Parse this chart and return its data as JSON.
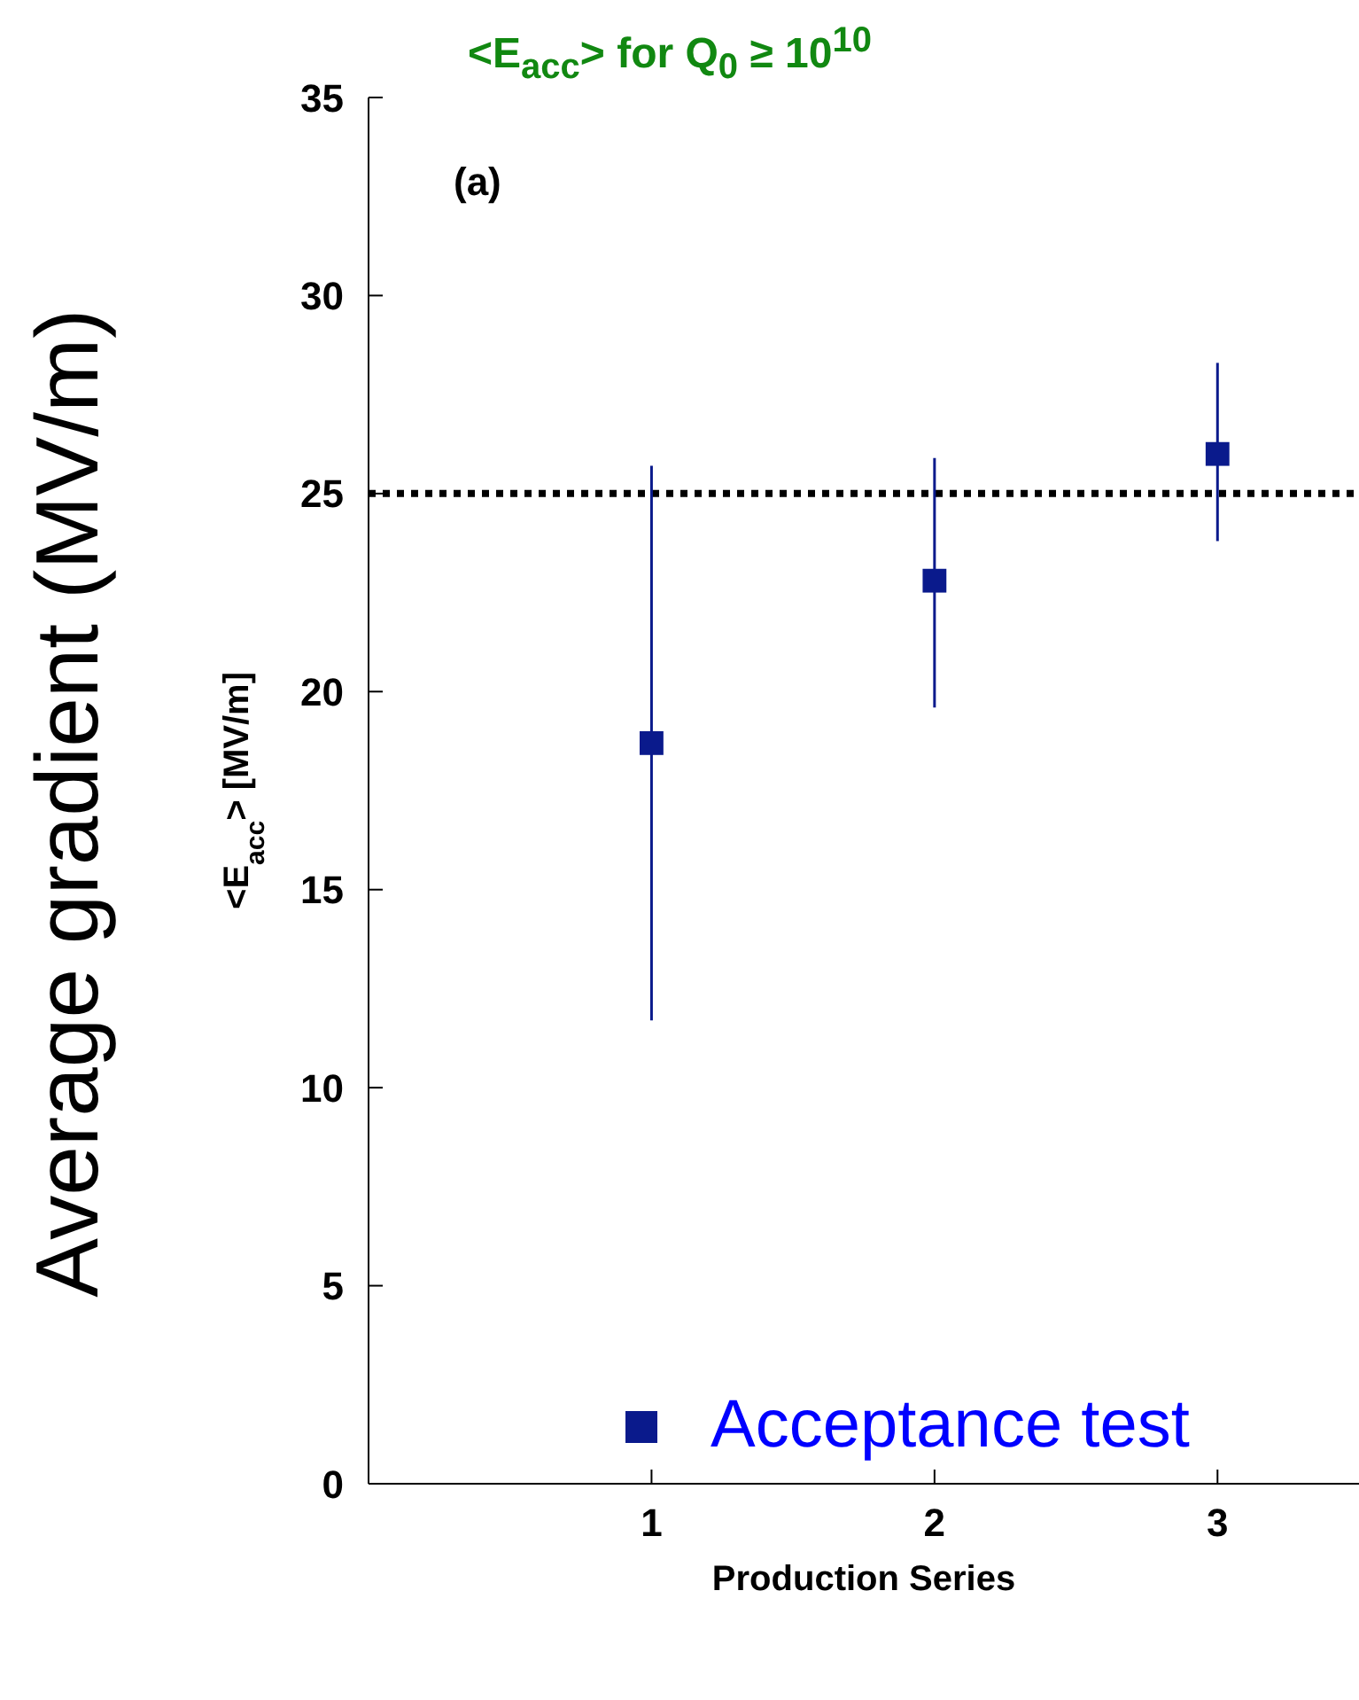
{
  "chart_data": {
    "type": "scatter",
    "title": "<E$_{acc}$> for Q$_{0}$ ≥ 10$^{10}$",
    "ylabel": "Average gradient (MV/m)",
    "xlabel": "Production Series",
    "annotations": [
      "<E$_{acc}$> [MV/m]",
      "(a)"
    ],
    "x": [
      1,
      2,
      3
    ],
    "series": [
      {
        "name": "Acceptance test",
        "color": "#0a1a8c",
        "values": [
          18.7,
          22.8,
          26.0
        ],
        "errors": [
          [
            11.7,
            25.7
          ],
          [
            19.6,
            25.9
          ],
          [
            23.8,
            28.3
          ]
        ]
      }
    ],
    "xlim": [
      0,
      3.5
    ],
    "xticks": [
      1,
      2,
      3
    ],
    "ylim": [
      0,
      35
    ],
    "yticks": [
      0,
      5,
      10,
      15,
      20,
      25,
      30,
      35
    ],
    "ref_lines": [
      {
        "axis": "y",
        "value": 25,
        "color": "#000000",
        "line_style": "dotted"
      }
    ],
    "marker": "square",
    "legend": "bottom right",
    "grid": false
  }
}
